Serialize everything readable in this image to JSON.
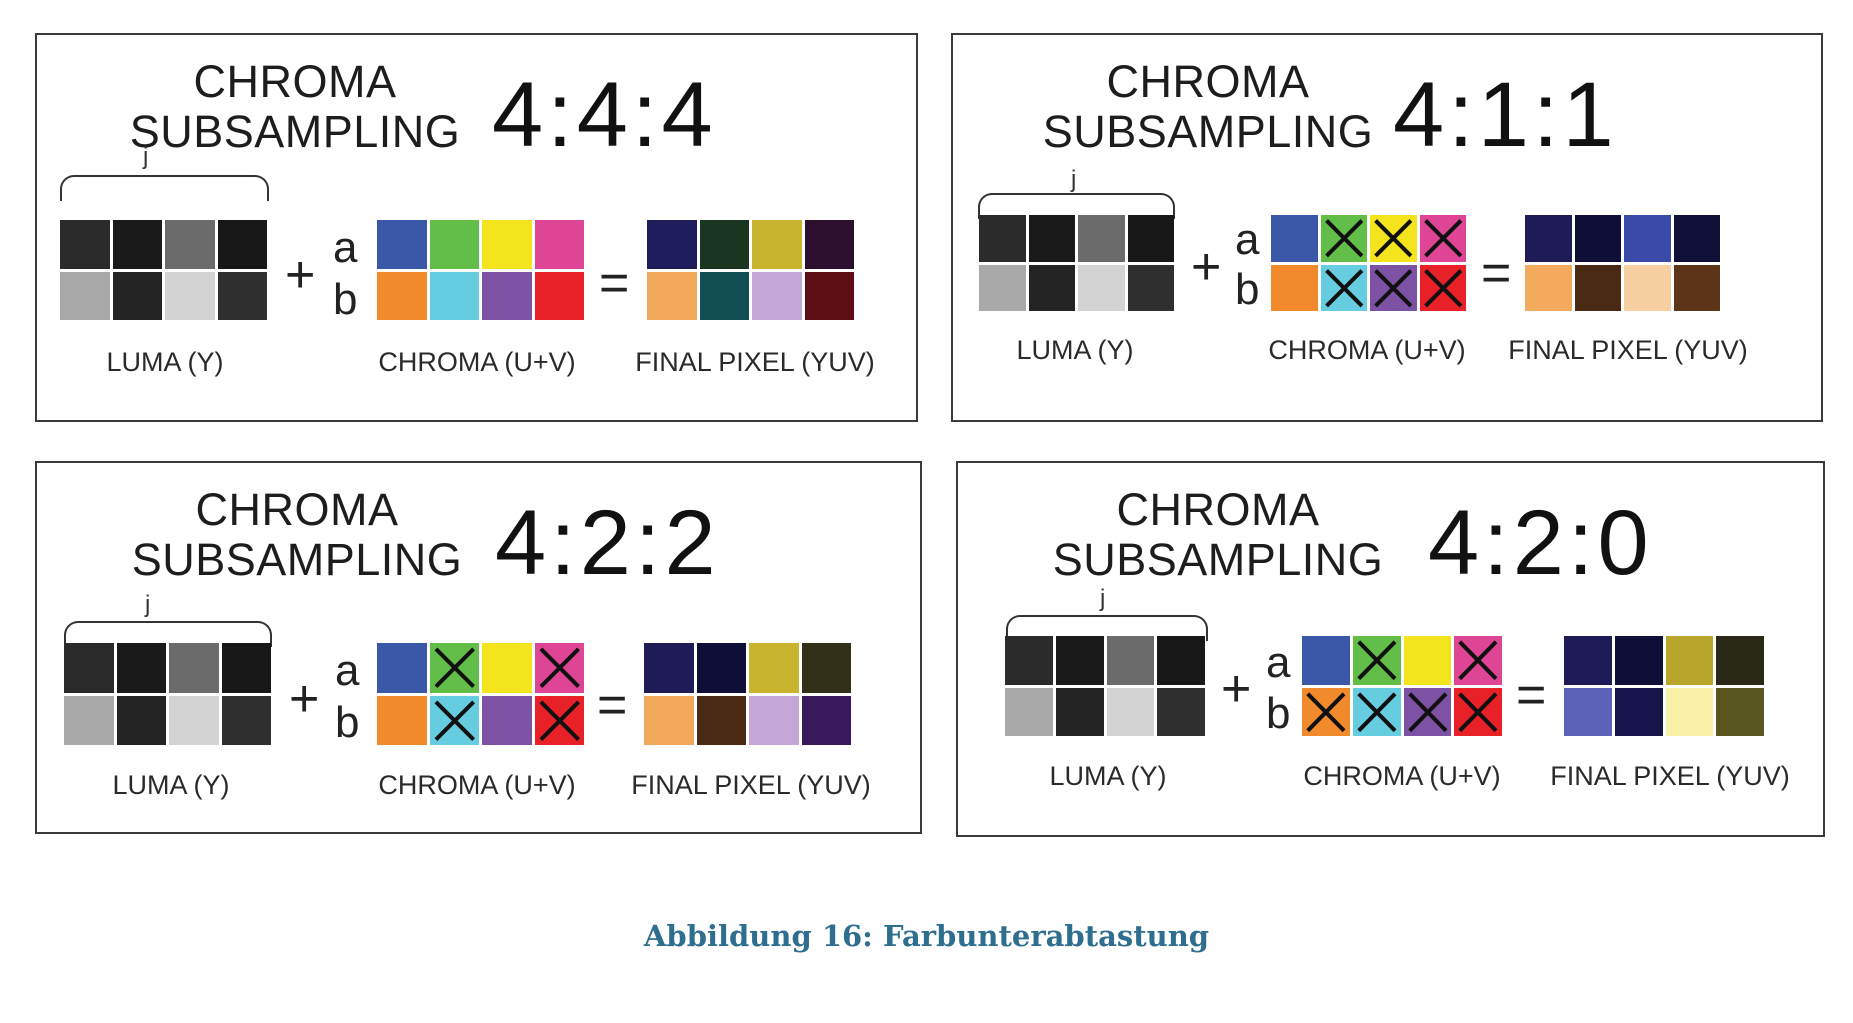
{
  "colors": {
    "luma": [
      "#2b2b2b",
      "#1a1a1a",
      "#6b6b6b",
      "#181818",
      "#a9a9a9",
      "#242424",
      "#d3d3d3",
      "#2f2f2f"
    ],
    "chroma": [
      "#3a57a8",
      "#62bd49",
      "#f4e41e",
      "#df4595",
      "#f08a2d",
      "#66cde0",
      "#7d52a4",
      "#e82027"
    ],
    "caption": "#2e6e8e"
  },
  "panels": [
    {
      "title_line1": "CHROMA",
      "title_line2": "SUBSAMPLING",
      "ratio": "4:4:4",
      "brace_label": "j",
      "plus": "+",
      "equals": "=",
      "a_label": "a",
      "b_label": "b",
      "luma_label": "LUMA (Y)",
      "chroma_label": "CHROMA (U+V)",
      "final_label": "FINAL PIXEL (YUV)",
      "crossed": [],
      "final_colors": [
        "#1f1d5c",
        "#1b3620",
        "#c9b430",
        "#2c0f2c",
        "#f0a95a",
        "#124f55",
        "#c4a7d6",
        "#5c0d15"
      ]
    },
    {
      "title_line1": "CHROMA",
      "title_line2": "SUBSAMPLING",
      "ratio": "4:1:1",
      "brace_label": "j",
      "plus": "+",
      "equals": "=",
      "a_label": "a",
      "b_label": "b",
      "luma_label": "LUMA (Y)",
      "chroma_label": "CHROMA (U+V)",
      "final_label": "FINAL PIXEL (YUV)",
      "crossed": [
        1,
        2,
        3,
        5,
        6,
        7
      ],
      "final_colors": [
        "#1e1b58",
        "#0f0e36",
        "#3a4aa6",
        "#0f0f38",
        "#f2aa5c",
        "#4a2a14",
        "#f7cfa0",
        "#5c3418"
      ]
    },
    {
      "title_line1": "CHROMA",
      "title_line2": "SUBSAMPLING",
      "ratio": "4:2:2",
      "brace_label": "j",
      "plus": "+",
      "equals": "=",
      "a_label": "a",
      "b_label": "b",
      "luma_label": "LUMA (Y)",
      "chroma_label": "CHROMA (U+V)",
      "final_label": "FINAL PIXEL (YUV)",
      "crossed": [
        1,
        3,
        5,
        7
      ],
      "final_colors": [
        "#1e1b58",
        "#0f0e36",
        "#c9b430",
        "#33301a",
        "#f0a95a",
        "#4a2a14",
        "#c4a7d6",
        "#361a5c"
      ]
    },
    {
      "title_line1": "CHROMA",
      "title_line2": "SUBSAMPLING",
      "ratio": "4:2:0",
      "brace_label": "j",
      "plus": "+",
      "equals": "=",
      "a_label": "a",
      "b_label": "b",
      "luma_label": "LUMA (Y)",
      "chroma_label": "CHROMA (U+V)",
      "final_label": "FINAL PIXEL (YUV)",
      "crossed": [
        1,
        3,
        4,
        5,
        6,
        7
      ],
      "final_colors": [
        "#1e1b58",
        "#0f0e36",
        "#b8a62c",
        "#2a2816",
        "#5a63b8",
        "#16144a",
        "#f8f2a6",
        "#5a5620"
      ]
    }
  ],
  "caption": "Abbildung 16: Farbunterabtastung"
}
